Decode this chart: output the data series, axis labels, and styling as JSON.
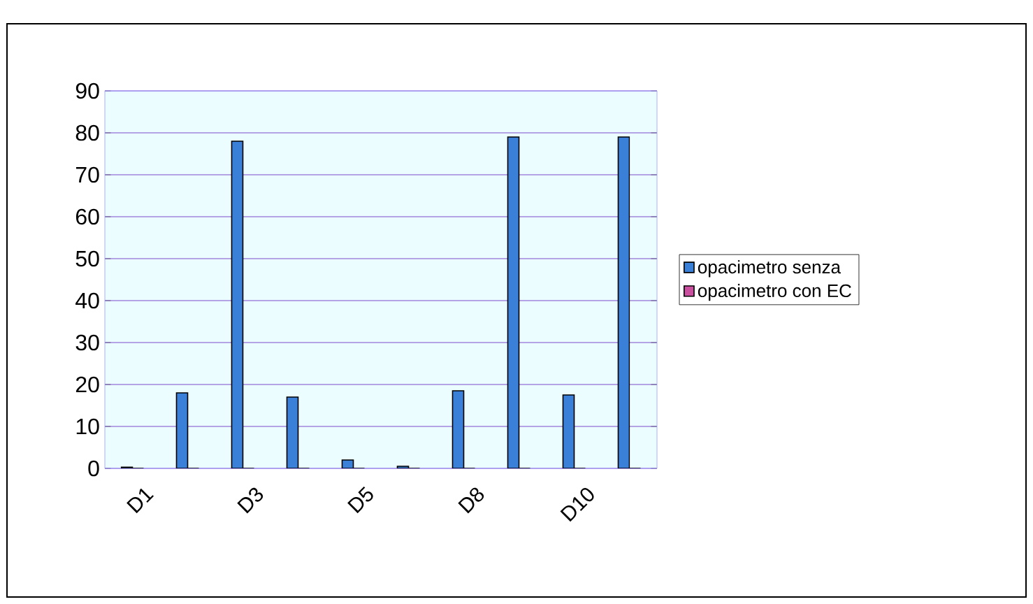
{
  "chart_data": {
    "type": "bar",
    "categories": [
      "D1",
      null,
      "D3",
      null,
      "D5",
      null,
      "D8",
      null,
      "D10",
      null
    ],
    "series": [
      {
        "name": "opacimetro senza",
        "color": "#3a7fd8",
        "values": [
          0.3,
          18,
          78,
          17,
          2,
          0.5,
          18.5,
          79,
          17.5,
          79
        ]
      },
      {
        "name": "opacimetro con EC",
        "color": "#c8509e",
        "values": [
          0,
          0,
          0,
          0,
          0,
          0,
          0,
          0,
          0,
          0
        ]
      }
    ],
    "ylim": [
      0,
      90
    ],
    "yticks": [
      0,
      10,
      20,
      30,
      40,
      50,
      60,
      70,
      80,
      90
    ],
    "grid": "y",
    "legend": "right"
  }
}
